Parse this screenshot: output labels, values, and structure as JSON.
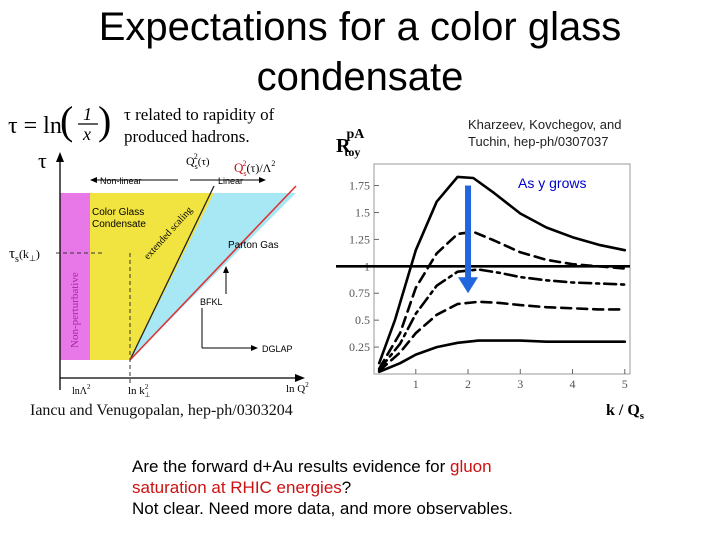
{
  "slide": {
    "title_line1": "Expectations for a color glass",
    "title_line2": "condensate",
    "tau_note_line1": "τ related to rapidity of",
    "tau_note_line2": "produced hadrons.",
    "reference_right_line1": "Kharzeev, Kovchegov, and",
    "reference_right_line2": "Tuchin, hep-ph/0307037",
    "reference_left": "Iancu and Venugopalan, hep-ph/0303204",
    "question_part1": "Are the forward d+Au results evidence for ",
    "question_highlight1": "gluon",
    "question_highlight2": "saturation at RHIC energies",
    "question_end": "?",
    "conclusion": "Not clear.  Need more data, and more observables."
  },
  "left_diagram": {
    "formula": {
      "lhs": "τ = ln",
      "num": "1",
      "den": "x"
    },
    "y_axis_label": "τ",
    "tau_s_label": "τ",
    "tau_s_sub": "s",
    "tau_s_arg": "(k",
    "tau_s_arg_sub": "⊥",
    "tau_s_arg_close": ")",
    "x_axis_label": "ln Q",
    "x_axis_sup": "2",
    "tick_lambda": "lnΛ",
    "tick_lambda_sup": "2",
    "tick_k": "ln k",
    "tick_k_sup": "2",
    "tick_k_sub": "⊥",
    "qs_top": "Q",
    "qs_top_sub": "s",
    "qs_top_sup": "2",
    "qs_top_arg": "(τ)",
    "qs_right": "Q",
    "qs_right_sub": "s",
    "qs_right_sup": "2",
    "qs_right_arg": "(τ)/Λ",
    "qs_right_arg_sup": "2",
    "nonlinear": "Non-linear",
    "linear": "Linear",
    "cgc_line1": "Color Glass",
    "cgc_line2": "Condensate",
    "extended_scaling": "extended scaling",
    "parton_gas": "Parton Gas",
    "bfkl": "BFKL",
    "dglap": "DGLAP",
    "nonperturbative": "Non-perturbative",
    "colors": {
      "nonperturbative": "#e878e8",
      "cgc": "#f2e440",
      "parton": "#a8e8f5",
      "scaling_line": "#dd3333"
    }
  },
  "chart_data": {
    "type": "line",
    "ylabel_main": "R",
    "ylabel_sup": "pA",
    "ylabel_sub": "toy",
    "xlabel_main": "k / Q",
    "xlabel_sub": "s",
    "x_ticks": [
      1,
      2,
      3,
      4,
      5
    ],
    "y_ticks": [
      "0.25",
      "0.5",
      "0.75",
      "1",
      "1.25",
      "1.5",
      "1.75"
    ],
    "xlim": [
      0.2,
      5.1
    ],
    "ylim": [
      0,
      1.95
    ],
    "annotation": "As y grows",
    "reference_line": 1,
    "arrow": {
      "x": 2,
      "from_y": 1.75,
      "to_y": 0.75
    },
    "series": [
      {
        "style": "solid",
        "x": [
          0.3,
          0.6,
          1.0,
          1.4,
          1.8,
          2.1,
          2.5,
          3.0,
          3.5,
          4.0,
          4.5,
          5.0
        ],
        "y": [
          0.1,
          0.5,
          1.15,
          1.6,
          1.83,
          1.82,
          1.68,
          1.49,
          1.36,
          1.27,
          1.2,
          1.15
        ]
      },
      {
        "style": "dashed",
        "x": [
          0.3,
          0.7,
          1.0,
          1.4,
          1.8,
          2.1,
          2.5,
          3.0,
          3.5,
          4.0,
          4.5,
          5.0
        ],
        "y": [
          0.05,
          0.38,
          0.8,
          1.12,
          1.3,
          1.32,
          1.24,
          1.13,
          1.06,
          1.02,
          1.0,
          0.98
        ]
      },
      {
        "style": "dashdot",
        "x": [
          0.3,
          0.7,
          1.0,
          1.4,
          1.8,
          2.2,
          2.6,
          3.0,
          3.5,
          4.0,
          4.5,
          5.0
        ],
        "y": [
          0.04,
          0.28,
          0.56,
          0.82,
          0.95,
          0.97,
          0.94,
          0.9,
          0.87,
          0.85,
          0.84,
          0.83
        ]
      },
      {
        "style": "dashed",
        "x": [
          0.3,
          0.7,
          1.0,
          1.4,
          1.8,
          2.2,
          2.6,
          3.0,
          3.5,
          4.0,
          4.5,
          5.0
        ],
        "y": [
          0.03,
          0.2,
          0.38,
          0.55,
          0.65,
          0.67,
          0.66,
          0.64,
          0.62,
          0.61,
          0.6,
          0.6
        ]
      },
      {
        "style": "solid",
        "x": [
          0.3,
          0.7,
          1.0,
          1.4,
          1.8,
          2.2,
          2.6,
          3.0,
          3.5,
          4.0,
          4.5,
          5.0
        ],
        "y": [
          0.02,
          0.1,
          0.18,
          0.25,
          0.29,
          0.31,
          0.31,
          0.31,
          0.3,
          0.3,
          0.3,
          0.3
        ]
      }
    ],
    "colors": {
      "arrow": "#2266dd",
      "annotation": "#0000cc"
    }
  }
}
